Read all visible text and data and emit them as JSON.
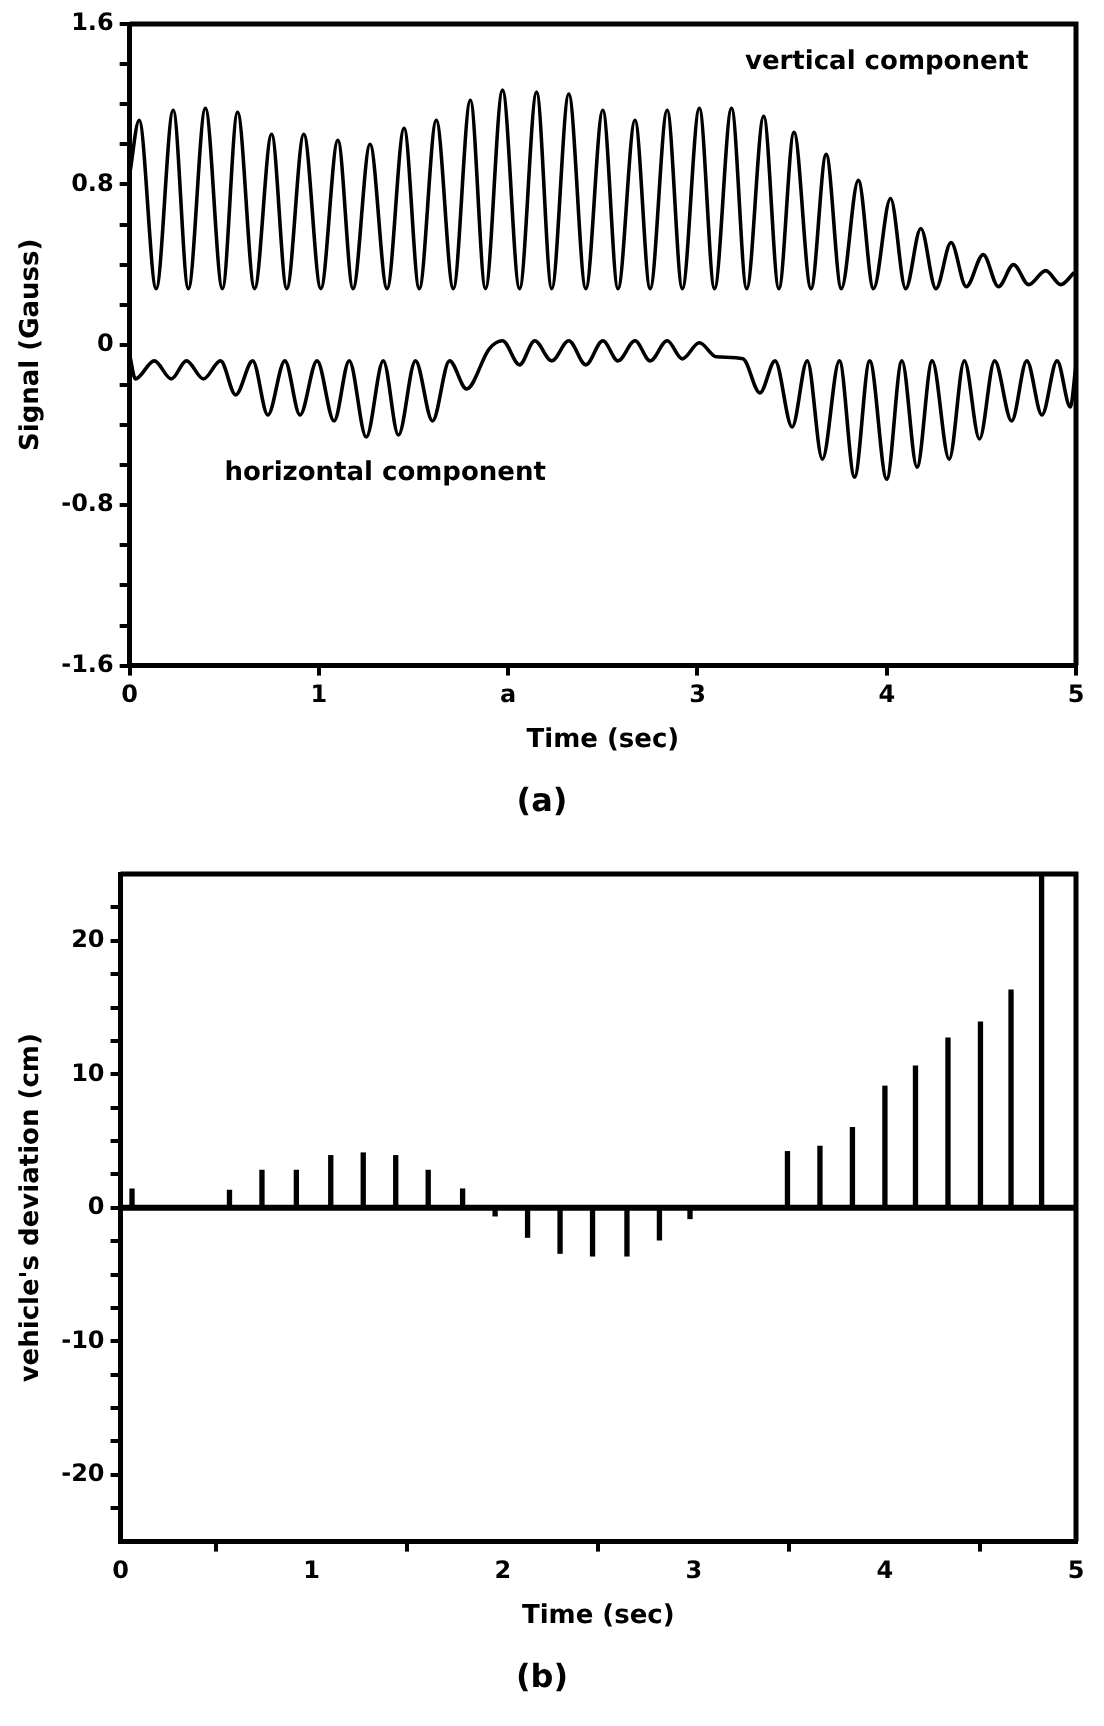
{
  "chart_data": [
    {
      "type": "line",
      "title": "(a)",
      "xlabel": "Time (sec)",
      "ylabel": "Signal (Gauss)",
      "xlim": [
        0,
        5
      ],
      "xticks": [
        0,
        1,
        {
          "value": 2,
          "label": "a"
        },
        3,
        4,
        5
      ],
      "ylim": [
        -1.6,
        1.6
      ],
      "yticks": [
        1.6,
        {
          "value": 1.4,
          "label": null
        },
        {
          "value": 1.2,
          "label": null
        },
        {
          "value": 1.0,
          "label": null
        },
        0.8,
        {
          "value": 0.6,
          "label": null
        },
        {
          "value": 0.4,
          "label": null
        },
        {
          "value": 0.2,
          "label": null
        },
        0,
        {
          "value": -0.2,
          "label": null
        },
        {
          "value": -0.4,
          "label": null
        },
        {
          "value": -0.6,
          "label": null
        },
        -0.8,
        {
          "value": -1.0,
          "label": null
        },
        {
          "value": -1.2,
          "label": null
        },
        {
          "value": -1.4,
          "label": null
        },
        -1.6
      ],
      "series": [
        {
          "name": "vertical component",
          "color": "#000000",
          "x": [
            0,
            0.05,
            0.14,
            0.23,
            0.31,
            0.4,
            0.49,
            0.57,
            0.66,
            0.75,
            0.83,
            0.92,
            1.01,
            1.1,
            1.18,
            1.27,
            1.36,
            1.45,
            1.53,
            1.62,
            1.71,
            1.8,
            1.88,
            1.97,
            2.06,
            2.15,
            2.23,
            2.32,
            2.41,
            2.5,
            2.58,
            2.67,
            2.75,
            2.84,
            2.92,
            3.01,
            3.09,
            3.18,
            3.26,
            3.35,
            3.43,
            3.51,
            3.6,
            3.68,
            3.76,
            3.85,
            3.93,
            4.02,
            4.1,
            4.18,
            4.26,
            4.34,
            4.42,
            4.51,
            4.59,
            4.67,
            4.75,
            4.84,
            4.92,
            4.99
          ],
          "values": [
            0.85,
            1.12,
            0.28,
            1.17,
            0.28,
            1.18,
            0.28,
            1.16,
            0.28,
            1.05,
            0.28,
            1.05,
            0.28,
            1.02,
            0.28,
            1.0,
            0.28,
            1.08,
            0.28,
            1.12,
            0.28,
            1.22,
            0.28,
            1.27,
            0.28,
            1.26,
            0.28,
            1.25,
            0.28,
            1.17,
            0.28,
            1.12,
            0.28,
            1.17,
            0.28,
            1.18,
            0.28,
            1.18,
            0.28,
            1.14,
            0.28,
            1.06,
            0.28,
            0.95,
            0.28,
            0.82,
            0.28,
            0.73,
            0.28,
            0.58,
            0.28,
            0.51,
            0.29,
            0.45,
            0.29,
            0.4,
            0.3,
            0.37,
            0.3,
            0.36
          ]
        },
        {
          "name": "horizontal component",
          "color": "#000000",
          "x": [
            0,
            0.03,
            0.13,
            0.22,
            0.3,
            0.39,
            0.48,
            0.56,
            0.65,
            0.73,
            0.82,
            0.9,
            0.99,
            1.08,
            1.16,
            1.25,
            1.34,
            1.42,
            1.51,
            1.6,
            1.69,
            1.78,
            1.9,
            1.97,
            2.06,
            2.14,
            2.23,
            2.32,
            2.41,
            2.5,
            2.58,
            2.67,
            2.75,
            2.84,
            2.92,
            3.01,
            3.1,
            3.24,
            3.33,
            3.41,
            3.5,
            3.58,
            3.66,
            3.75,
            3.83,
            3.91,
            4.0,
            4.08,
            4.16,
            4.24,
            4.33,
            4.41,
            4.49,
            4.57,
            4.66,
            4.74,
            4.82,
            4.9,
            4.97,
            5.0
          ],
          "values": [
            -0.05,
            -0.17,
            -0.08,
            -0.17,
            -0.08,
            -0.17,
            -0.08,
            -0.25,
            -0.08,
            -0.35,
            -0.08,
            -0.35,
            -0.08,
            -0.38,
            -0.08,
            -0.46,
            -0.08,
            -0.45,
            -0.08,
            -0.38,
            -0.08,
            -0.22,
            -0.02,
            0.02,
            -0.1,
            0.02,
            -0.08,
            0.02,
            -0.1,
            0.02,
            -0.08,
            0.02,
            -0.08,
            0.02,
            -0.07,
            0.01,
            -0.06,
            -0.07,
            -0.24,
            -0.08,
            -0.41,
            -0.08,
            -0.57,
            -0.08,
            -0.66,
            -0.08,
            -0.67,
            -0.08,
            -0.61,
            -0.08,
            -0.57,
            -0.08,
            -0.47,
            -0.08,
            -0.38,
            -0.08,
            -0.35,
            -0.08,
            -0.31,
            -0.1
          ]
        }
      ]
    },
    {
      "type": "bar",
      "title": "(b)",
      "xlabel": "Time (sec)",
      "ylabel": "vehicle's deviation (cm)",
      "xlim": [
        0,
        5
      ],
      "xticks": [
        0,
        1,
        2,
        3,
        4,
        5
      ],
      "ylim": [
        -25,
        25
      ],
      "yticks": [
        {
          "value": 22.5,
          "label": null
        },
        20,
        {
          "value": 17.5,
          "label": null
        },
        {
          "value": 15,
          "label": null
        },
        {
          "value": 12.5,
          "label": null
        },
        10,
        {
          "value": 7.5,
          "label": null
        },
        {
          "value": 5,
          "label": null
        },
        {
          "value": 2.5,
          "label": null
        },
        0,
        {
          "value": -2.5,
          "label": null
        },
        {
          "value": -5,
          "label": null
        },
        {
          "value": -7.5,
          "label": null
        },
        -10,
        {
          "value": -12.5,
          "label": null
        },
        {
          "value": -15,
          "label": null
        },
        {
          "value": -17.5,
          "label": null
        },
        -20,
        {
          "value": -22.5,
          "label": null
        }
      ],
      "x": [
        0.06,
        0.57,
        0.74,
        0.92,
        1.1,
        1.27,
        1.44,
        1.61,
        1.79,
        1.96,
        2.13,
        2.3,
        2.47,
        2.65,
        2.82,
        2.98,
        3.49,
        3.66,
        3.83,
        4.0,
        4.16,
        4.33,
        4.5,
        4.66,
        4.82
      ],
      "values": [
        1.4,
        1.3,
        2.8,
        2.8,
        3.9,
        4.1,
        3.9,
        2.8,
        1.4,
        -0.6,
        -2.2,
        -3.4,
        -3.6,
        -3.6,
        -2.4,
        -0.8,
        4.2,
        4.6,
        6.0,
        9.1,
        10.6,
        12.7,
        13.9,
        16.3,
        25
      ],
      "color": "#000000",
      "ref_lines": [
        {
          "axis": "y",
          "value": 0
        }
      ]
    }
  ]
}
